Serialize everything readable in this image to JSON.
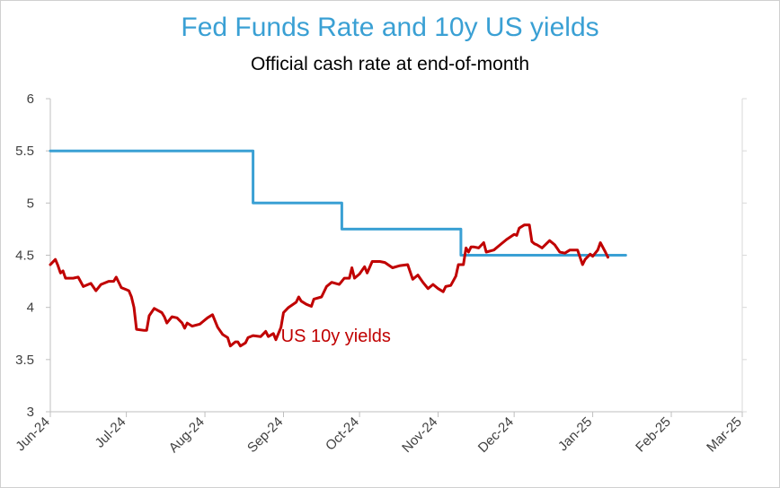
{
  "chart_data": {
    "type": "line",
    "title": "Fed Funds Rate and 10y US yields",
    "subtitle": "Official cash rate at end-of-month",
    "xlabel": "",
    "ylabel": "",
    "ylim": [
      3,
      6
    ],
    "xlim": [
      "2024-06-01",
      "2025-03-01"
    ],
    "y_ticks": [
      "3",
      "3.5",
      "4",
      "4.5",
      "5",
      "5.5",
      "6"
    ],
    "x_ticks": [
      "Jun-24",
      "Jul-24",
      "Aug-24",
      "Sep-24",
      "Oct-24",
      "Nov-24",
      "Dec-24",
      "Jan-25",
      "Feb-25",
      "Mar-25"
    ],
    "grid": false,
    "legend": "none",
    "series": [
      {
        "name": "",
        "color": "#3aa0d4",
        "step": true,
        "points": [
          [
            "2024-06-01",
            5.5
          ],
          [
            "2024-08-20",
            5.5
          ],
          [
            "2024-08-20",
            5.0
          ],
          [
            "2024-09-24",
            5.0
          ],
          [
            "2024-09-24",
            4.75
          ],
          [
            "2024-11-10",
            4.75
          ],
          [
            "2024-11-10",
            4.5
          ],
          [
            "2025-01-14",
            4.5
          ]
        ]
      },
      {
        "name": "US 10y yields",
        "color": "#c00000",
        "points": [
          [
            "2024-06-01",
            4.41
          ],
          [
            "2024-06-03",
            4.46
          ],
          [
            "2024-06-04",
            4.4
          ],
          [
            "2024-06-05",
            4.33
          ],
          [
            "2024-06-06",
            4.35
          ],
          [
            "2024-06-07",
            4.28
          ],
          [
            "2024-06-10",
            4.28
          ],
          [
            "2024-06-12",
            4.29
          ],
          [
            "2024-06-14",
            4.2
          ],
          [
            "2024-06-17",
            4.23
          ],
          [
            "2024-06-19",
            4.16
          ],
          [
            "2024-06-21",
            4.22
          ],
          [
            "2024-06-24",
            4.25
          ],
          [
            "2024-06-26",
            4.25
          ],
          [
            "2024-06-27",
            4.29
          ],
          [
            "2024-06-29",
            4.19
          ],
          [
            "2024-07-01",
            4.17
          ],
          [
            "2024-07-02",
            4.16
          ],
          [
            "2024-07-03",
            4.1
          ],
          [
            "2024-07-04",
            4.0
          ],
          [
            "2024-07-05",
            3.79
          ],
          [
            "2024-07-08",
            3.78
          ],
          [
            "2024-07-09",
            3.78
          ],
          [
            "2024-07-10",
            3.92
          ],
          [
            "2024-07-12",
            3.99
          ],
          [
            "2024-07-15",
            3.95
          ],
          [
            "2024-07-16",
            3.91
          ],
          [
            "2024-07-17",
            3.85
          ],
          [
            "2024-07-19",
            3.91
          ],
          [
            "2024-07-21",
            3.9
          ],
          [
            "2024-07-23",
            3.85
          ],
          [
            "2024-07-24",
            3.8
          ],
          [
            "2024-07-25",
            3.85
          ],
          [
            "2024-07-27",
            3.82
          ],
          [
            "2024-07-30",
            3.84
          ],
          [
            "2024-07-31",
            3.86
          ],
          [
            "2024-08-02",
            3.9
          ],
          [
            "2024-08-04",
            3.93
          ],
          [
            "2024-08-06",
            3.81
          ],
          [
            "2024-08-08",
            3.74
          ],
          [
            "2024-08-10",
            3.71
          ],
          [
            "2024-08-11",
            3.63
          ],
          [
            "2024-08-13",
            3.67
          ],
          [
            "2024-08-14",
            3.67
          ],
          [
            "2024-08-15",
            3.63
          ],
          [
            "2024-08-17",
            3.66
          ],
          [
            "2024-08-18",
            3.71
          ],
          [
            "2024-08-20",
            3.73
          ],
          [
            "2024-08-23",
            3.72
          ],
          [
            "2024-08-25",
            3.77
          ],
          [
            "2024-08-26",
            3.72
          ],
          [
            "2024-08-28",
            3.75
          ],
          [
            "2024-08-29",
            3.69
          ],
          [
            "2024-08-31",
            3.81
          ],
          [
            "2024-09-01",
            3.95
          ],
          [
            "2024-09-03",
            4.0
          ],
          [
            "2024-09-06",
            4.05
          ],
          [
            "2024-09-07",
            4.1
          ],
          [
            "2024-09-08",
            4.06
          ],
          [
            "2024-09-10",
            4.03
          ],
          [
            "2024-09-12",
            4.01
          ],
          [
            "2024-09-13",
            4.08
          ],
          [
            "2024-09-16",
            4.1
          ],
          [
            "2024-09-18",
            4.2
          ],
          [
            "2024-09-20",
            4.24
          ],
          [
            "2024-09-23",
            4.22
          ],
          [
            "2024-09-25",
            4.28
          ],
          [
            "2024-09-27",
            4.28
          ],
          [
            "2024-09-28",
            4.38
          ],
          [
            "2024-09-29",
            4.28
          ],
          [
            "2024-10-01",
            4.32
          ],
          [
            "2024-10-03",
            4.39
          ],
          [
            "2024-10-04",
            4.33
          ],
          [
            "2024-10-06",
            4.44
          ],
          [
            "2024-10-09",
            4.44
          ],
          [
            "2024-10-11",
            4.43
          ],
          [
            "2024-10-14",
            4.38
          ],
          [
            "2024-10-17",
            4.4
          ],
          [
            "2024-10-20",
            4.41
          ],
          [
            "2024-10-22",
            4.27
          ],
          [
            "2024-10-24",
            4.31
          ],
          [
            "2024-10-26",
            4.24
          ],
          [
            "2024-10-28",
            4.18
          ],
          [
            "2024-10-30",
            4.22
          ],
          [
            "2024-11-01",
            4.18
          ],
          [
            "2024-11-03",
            4.15
          ],
          [
            "2024-11-04",
            4.2
          ],
          [
            "2024-11-06",
            4.21
          ],
          [
            "2024-11-08",
            4.3
          ],
          [
            "2024-11-09",
            4.41
          ],
          [
            "2024-11-11",
            4.41
          ],
          [
            "2024-11-12",
            4.57
          ],
          [
            "2024-11-13",
            4.53
          ],
          [
            "2024-11-14",
            4.58
          ],
          [
            "2024-11-15",
            4.58
          ],
          [
            "2024-11-17",
            4.57
          ],
          [
            "2024-11-19",
            4.62
          ],
          [
            "2024-11-20",
            4.53
          ],
          [
            "2024-11-23",
            4.55
          ],
          [
            "2024-11-25",
            4.59
          ],
          [
            "2024-11-28",
            4.65
          ],
          [
            "2024-12-01",
            4.7
          ],
          [
            "2024-12-02",
            4.69
          ],
          [
            "2024-12-03",
            4.76
          ],
          [
            "2024-12-05",
            4.79
          ],
          [
            "2024-12-07",
            4.79
          ],
          [
            "2024-12-08",
            4.63
          ],
          [
            "2024-12-09",
            4.61
          ],
          [
            "2024-12-10",
            4.6
          ],
          [
            "2024-12-12",
            4.57
          ],
          [
            "2024-12-15",
            4.64
          ],
          [
            "2024-12-17",
            4.6
          ],
          [
            "2024-12-19",
            4.53
          ],
          [
            "2024-12-21",
            4.52
          ],
          [
            "2024-12-23",
            4.55
          ],
          [
            "2024-12-26",
            4.55
          ],
          [
            "2024-12-28",
            4.41
          ],
          [
            "2024-12-29",
            4.46
          ],
          [
            "2024-12-31",
            4.51
          ],
          [
            "2025-01-01",
            4.49
          ],
          [
            "2025-01-03",
            4.55
          ],
          [
            "2025-01-04",
            4.62
          ],
          [
            "2025-01-06",
            4.53
          ],
          [
            "2025-01-07",
            4.48
          ]
        ]
      }
    ],
    "annotations": [
      {
        "text": "US 10y yields",
        "x": "2024-08-31",
        "y": 3.55,
        "color": "#c00000"
      }
    ]
  }
}
